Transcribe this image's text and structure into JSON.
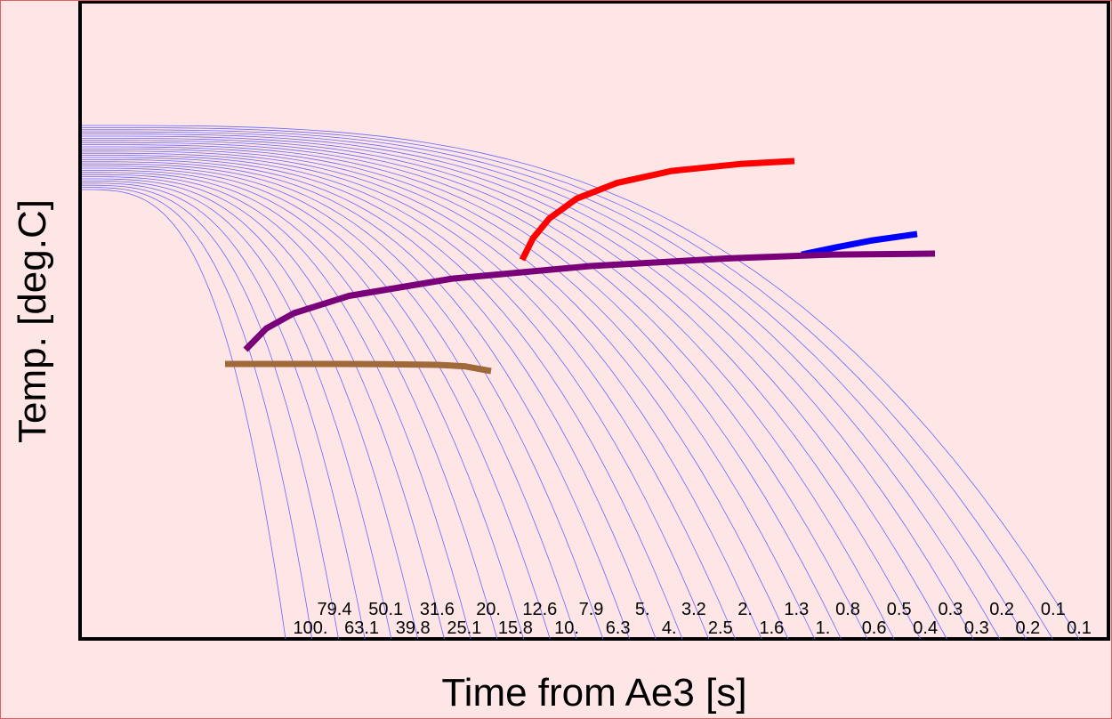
{
  "chart_data": {
    "type": "line",
    "title": "",
    "xlabel": "Time from Ae3 [s]",
    "ylabel": "Temp. [deg.C]",
    "x_scale": "log",
    "x_tick_labels_shown": false,
    "y_tick_labels_shown": false,
    "grid": false,
    "cooling_rate_labels": {
      "upper_row": [
        "79.4",
        "50.1",
        "31.6",
        "20.",
        "12.6",
        "7.9",
        "5.",
        "3.2",
        "2.",
        "1.3",
        "0.8",
        "0.5",
        "0.3",
        "0.2",
        "0.1"
      ],
      "lower_row": [
        "100.",
        "63.1",
        "39.8",
        "25.1",
        "15.8",
        "10.",
        "6.3",
        "4.",
        "2.5",
        "1.6",
        "1.",
        "0.6",
        "0.4",
        "0.3",
        "0.2",
        "0.1"
      ]
    },
    "cooling_curves": {
      "count": 31,
      "color": "#6666ff",
      "description": "thin cooling curves, one per listed cooling rate"
    },
    "series": [
      {
        "color": "#ff0000",
        "points": [
          [
            0.0,
            0.0
          ],
          [
            0.04,
            0.22
          ],
          [
            0.1,
            0.42
          ],
          [
            0.2,
            0.62
          ],
          [
            0.35,
            0.78
          ],
          [
            0.55,
            0.9
          ],
          [
            0.8,
            0.97
          ],
          [
            1.0,
            1.0
          ]
        ]
      },
      {
        "color": "#0000ff",
        "points": [
          [
            0.0,
            0.0
          ],
          [
            0.3,
            0.35
          ],
          [
            0.6,
            0.68
          ],
          [
            1.0,
            1.0
          ]
        ]
      },
      {
        "color": "#7a007a",
        "points": [
          [
            0.0,
            0.0
          ],
          [
            0.03,
            0.22
          ],
          [
            0.07,
            0.38
          ],
          [
            0.15,
            0.56
          ],
          [
            0.3,
            0.74
          ],
          [
            0.5,
            0.87
          ],
          [
            0.7,
            0.95
          ],
          [
            0.85,
            0.99
          ],
          [
            1.0,
            1.0
          ]
        ]
      },
      {
        "color": "#a0693a",
        "points": [
          [
            0.0,
            1.0
          ],
          [
            0.4,
            1.0
          ],
          [
            0.6,
            0.97
          ],
          [
            0.8,
            0.88
          ],
          [
            0.9,
            0.67
          ],
          [
            1.0,
            0.0
          ]
        ]
      }
    ]
  }
}
